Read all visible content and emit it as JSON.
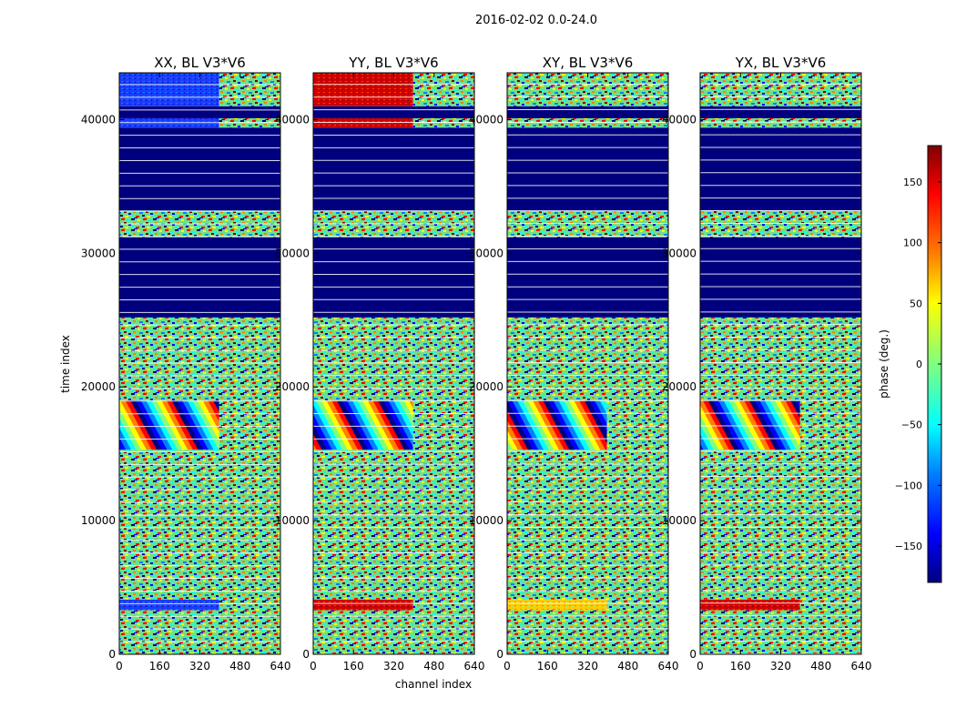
{
  "figure": {
    "suptitle": "2016-02-02 0.0-24.0",
    "xlabel": "channel index",
    "ylabel": "time index"
  },
  "colorbar": {
    "label": "phase (deg.)",
    "range": [
      -180,
      180
    ],
    "ticks": [
      -150,
      -100,
      -50,
      0,
      50,
      100,
      150
    ],
    "tick_labels": [
      "−150",
      "−100",
      "−50",
      "0",
      "50",
      "100",
      "150"
    ],
    "colormap": "jet",
    "colors": [
      "#00007f",
      "#0000ff",
      "#0080ff",
      "#00ffff",
      "#80ff80",
      "#ffff00",
      "#ff8000",
      "#ff0000",
      "#7f0000"
    ]
  },
  "chart_data": [
    {
      "type": "heatmap",
      "title": "XX, BL V3*V6",
      "xlim": [
        0,
        640
      ],
      "ylim": [
        0,
        43500
      ],
      "xticks": [
        0,
        160,
        320,
        480,
        640
      ],
      "yticks": [
        0,
        10000,
        20000,
        30000,
        40000
      ],
      "z": "phase (deg.)",
      "bands": [
        {
          "t0": 0,
          "t1": 3300,
          "fill": "noise"
        },
        {
          "t0": 3300,
          "t1": 4100,
          "fill": "blue"
        },
        {
          "t0": 4100,
          "t1": 9600,
          "fill": "noise"
        },
        {
          "t0": 9600,
          "t1": 15300,
          "fill": "noise"
        },
        {
          "t0": 15300,
          "t1": 19000,
          "fill": "fringe"
        },
        {
          "t0": 19000,
          "t1": 25200,
          "fill": "noise"
        },
        {
          "t0": 25200,
          "t1": 31200,
          "fill": "flagged"
        },
        {
          "t0": 31200,
          "t1": 33200,
          "fill": "noise"
        },
        {
          "t0": 33200,
          "t1": 39400,
          "fill": "flagged"
        },
        {
          "t0": 39400,
          "t1": 40100,
          "fill": "blue"
        },
        {
          "t0": 40100,
          "t1": 41000,
          "fill": "flagged"
        },
        {
          "t0": 41000,
          "t1": 43500,
          "fill": "blue"
        }
      ]
    },
    {
      "type": "heatmap",
      "title": "YY, BL V3*V6",
      "xlim": [
        0,
        640
      ],
      "ylim": [
        0,
        43500
      ],
      "xticks": [
        0,
        160,
        320,
        480,
        640
      ],
      "yticks": [
        0,
        10000,
        20000,
        30000,
        40000
      ],
      "z": "phase (deg.)",
      "bands": [
        {
          "t0": 0,
          "t1": 3300,
          "fill": "noise"
        },
        {
          "t0": 3300,
          "t1": 4100,
          "fill": "red"
        },
        {
          "t0": 4100,
          "t1": 9600,
          "fill": "noise"
        },
        {
          "t0": 9600,
          "t1": 15300,
          "fill": "noise"
        },
        {
          "t0": 15300,
          "t1": 19000,
          "fill": "fringe"
        },
        {
          "t0": 19000,
          "t1": 25200,
          "fill": "noise"
        },
        {
          "t0": 25200,
          "t1": 31200,
          "fill": "flagged"
        },
        {
          "t0": 31200,
          "t1": 33200,
          "fill": "noise"
        },
        {
          "t0": 33200,
          "t1": 39400,
          "fill": "flagged"
        },
        {
          "t0": 39400,
          "t1": 40100,
          "fill": "red"
        },
        {
          "t0": 40100,
          "t1": 41000,
          "fill": "flagged"
        },
        {
          "t0": 41000,
          "t1": 43500,
          "fill": "red"
        }
      ]
    },
    {
      "type": "heatmap",
      "title": "XY, BL V3*V6",
      "xlim": [
        0,
        640
      ],
      "ylim": [
        0,
        43500
      ],
      "xticks": [
        0,
        160,
        320,
        480,
        640
      ],
      "yticks": [
        0,
        10000,
        20000,
        30000,
        40000
      ],
      "z": "phase (deg.)",
      "bands": [
        {
          "t0": 0,
          "t1": 3300,
          "fill": "noise"
        },
        {
          "t0": 3300,
          "t1": 4100,
          "fill": "yellow"
        },
        {
          "t0": 4100,
          "t1": 9600,
          "fill": "noise"
        },
        {
          "t0": 9600,
          "t1": 15300,
          "fill": "noise"
        },
        {
          "t0": 15300,
          "t1": 19000,
          "fill": "fringe"
        },
        {
          "t0": 19000,
          "t1": 25200,
          "fill": "noise"
        },
        {
          "t0": 25200,
          "t1": 31200,
          "fill": "flagged"
        },
        {
          "t0": 31200,
          "t1": 33200,
          "fill": "noise"
        },
        {
          "t0": 33200,
          "t1": 39400,
          "fill": "flagged"
        },
        {
          "t0": 39400,
          "t1": 40100,
          "fill": "noise"
        },
        {
          "t0": 40100,
          "t1": 41000,
          "fill": "flagged"
        },
        {
          "t0": 41000,
          "t1": 43500,
          "fill": "noise"
        }
      ]
    },
    {
      "type": "heatmap",
      "title": "YX, BL V3*V6",
      "xlim": [
        0,
        640
      ],
      "ylim": [
        0,
        43500
      ],
      "xticks": [
        0,
        160,
        320,
        480,
        640
      ],
      "yticks": [
        0,
        10000,
        20000,
        30000,
        40000
      ],
      "z": "phase (deg.)",
      "bands": [
        {
          "t0": 0,
          "t1": 3300,
          "fill": "noise"
        },
        {
          "t0": 3300,
          "t1": 4100,
          "fill": "red"
        },
        {
          "t0": 4100,
          "t1": 9600,
          "fill": "noise"
        },
        {
          "t0": 9600,
          "t1": 15300,
          "fill": "noise"
        },
        {
          "t0": 15300,
          "t1": 19000,
          "fill": "fringe"
        },
        {
          "t0": 19000,
          "t1": 25200,
          "fill": "noise"
        },
        {
          "t0": 25200,
          "t1": 31200,
          "fill": "flagged"
        },
        {
          "t0": 31200,
          "t1": 33200,
          "fill": "noise"
        },
        {
          "t0": 33200,
          "t1": 39400,
          "fill": "flagged"
        },
        {
          "t0": 39400,
          "t1": 40100,
          "fill": "noise"
        },
        {
          "t0": 40100,
          "t1": 41000,
          "fill": "flagged"
        },
        {
          "t0": 41000,
          "t1": 43500,
          "fill": "noise"
        }
      ]
    }
  ]
}
